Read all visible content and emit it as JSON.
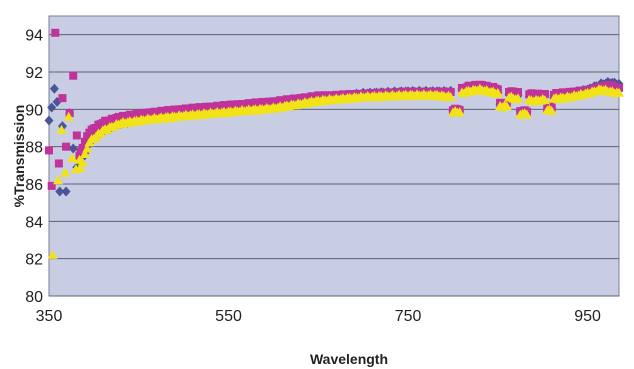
{
  "chart_data": {
    "type": "scatter",
    "title": "",
    "xlabel": "Wavelength",
    "ylabel": "%Transmission",
    "xlim": [
      350,
      985
    ],
    "ylim": [
      80,
      95
    ],
    "x_ticks": [
      350,
      550,
      750,
      950
    ],
    "y_ticks": [
      80,
      82,
      84,
      86,
      88,
      90,
      92,
      94
    ],
    "grid": "horizontal",
    "legend": "none",
    "plot_background": "#c8cde4",
    "series": [
      {
        "color": "#4a5598",
        "marker": "diamond",
        "points": [
          [
            350,
            89.4
          ],
          [
            353,
            90.1
          ],
          [
            356,
            91.1
          ],
          [
            359,
            90.4
          ],
          [
            362,
            85.6
          ],
          [
            365,
            89.1
          ],
          [
            369,
            85.6
          ],
          [
            373,
            89.8
          ],
          [
            377,
            87.9
          ],
          [
            381,
            86.9
          ]
        ],
        "curve": [
          [
            385,
            87.2
          ],
          [
            395,
            88.3
          ],
          [
            410,
            88.9
          ],
          [
            430,
            89.3
          ],
          [
            460,
            89.6
          ],
          [
            500,
            89.9
          ],
          [
            550,
            90.1
          ],
          [
            600,
            90.3
          ],
          [
            650,
            90.6
          ],
          [
            700,
            90.9
          ],
          [
            750,
            91.0
          ],
          [
            780,
            91.0
          ],
          [
            800,
            91.0
          ],
          [
            815,
            91.2
          ],
          [
            830,
            91.3
          ],
          [
            850,
            91.0
          ],
          [
            870,
            90.8
          ],
          [
            890,
            90.8
          ],
          [
            910,
            90.7
          ],
          [
            930,
            90.9
          ],
          [
            950,
            91.1
          ],
          [
            965,
            91.4
          ],
          [
            975,
            91.5
          ],
          [
            985,
            91.4
          ]
        ]
      },
      {
        "color": "#c0339a",
        "marker": "square",
        "points": [
          [
            350,
            87.8
          ],
          [
            353,
            85.9
          ],
          [
            357,
            94.1
          ],
          [
            361,
            87.1
          ],
          [
            365,
            90.6
          ],
          [
            369,
            88.0
          ],
          [
            373,
            89.8
          ],
          [
            377,
            91.8
          ],
          [
            381,
            88.6
          ],
          [
            384,
            87.5
          ]
        ],
        "curve": [
          [
            385,
            87.7
          ],
          [
            395,
            88.8
          ],
          [
            410,
            89.3
          ],
          [
            430,
            89.6
          ],
          [
            460,
            89.8
          ],
          [
            500,
            90.0
          ],
          [
            550,
            90.2
          ],
          [
            600,
            90.4
          ],
          [
            650,
            90.7
          ],
          [
            700,
            90.8
          ],
          [
            750,
            90.9
          ],
          [
            780,
            90.9
          ],
          [
            800,
            90.9
          ],
          [
            815,
            91.2
          ],
          [
            830,
            91.3
          ],
          [
            850,
            91.1
          ],
          [
            870,
            90.9
          ],
          [
            890,
            90.8
          ],
          [
            910,
            90.8
          ],
          [
            930,
            90.9
          ],
          [
            950,
            91.0
          ],
          [
            965,
            91.2
          ],
          [
            975,
            91.3
          ],
          [
            985,
            91.1
          ]
        ]
      },
      {
        "color": "#f2e318",
        "marker": "triangle",
        "points": [
          [
            354,
            82.2
          ],
          [
            360,
            86.2
          ],
          [
            364,
            88.9
          ],
          [
            368,
            86.6
          ],
          [
            372,
            89.6
          ],
          [
            376,
            87.4
          ],
          [
            380,
            86.8
          ],
          [
            384,
            87.3
          ]
        ],
        "curve": [
          [
            385,
            86.8
          ],
          [
            395,
            88.2
          ],
          [
            410,
            88.8
          ],
          [
            430,
            89.2
          ],
          [
            460,
            89.4
          ],
          [
            500,
            89.6
          ],
          [
            550,
            89.8
          ],
          [
            600,
            90.0
          ],
          [
            650,
            90.4
          ],
          [
            700,
            90.6
          ],
          [
            750,
            90.7
          ],
          [
            780,
            90.7
          ],
          [
            800,
            90.6
          ],
          [
            815,
            90.9
          ],
          [
            830,
            91.0
          ],
          [
            850,
            90.8
          ],
          [
            870,
            90.5
          ],
          [
            890,
            90.4
          ],
          [
            910,
            90.5
          ],
          [
            930,
            90.6
          ],
          [
            950,
            90.8
          ],
          [
            965,
            91.0
          ],
          [
            975,
            90.9
          ],
          [
            985,
            90.8
          ]
        ]
      }
    ],
    "dips": [
      {
        "x": [
          798,
          808
        ],
        "y": 89.9
      },
      {
        "x": [
          852,
          862
        ],
        "y": 90.2
      },
      {
        "x": [
          873,
          883
        ],
        "y": 89.8
      },
      {
        "x": [
          904,
          912
        ],
        "y": 90.0
      }
    ]
  }
}
